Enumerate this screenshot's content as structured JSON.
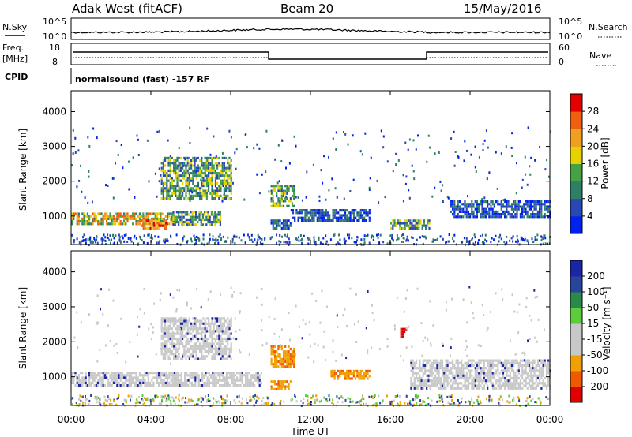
{
  "header": {
    "station": "Adak West (fitACF)",
    "beam": "Beam 20",
    "date": "15/May/2016",
    "cpid_text": "normalsound (fast) -157 RF"
  },
  "panels": {
    "nsky": {
      "label": "N.Sky",
      "left_ticks": [
        "10^5",
        "10^0"
      ],
      "right_ticks": [
        "10^5",
        "10^0"
      ],
      "right_label": "N.Search"
    },
    "freq": {
      "label_top": "Freq.",
      "label_unit": "[MHz]",
      "left_ticks": [
        "18",
        "8"
      ],
      "right_ticks": [
        "60",
        "0"
      ],
      "right_label": "Nave"
    },
    "cpid": {
      "label": "CPID"
    }
  },
  "colors": {
    "power": [
      "#0022ee",
      "#2a48b5",
      "#2f7f66",
      "#44a244",
      "#e6d200",
      "#f0a020",
      "#ee6010",
      "#e40000"
    ],
    "velocity": [
      "#e00000",
      "#ee5a00",
      "#f0a000",
      "#c8c8c8",
      "#c8c8c8",
      "#5ccc3c",
      "#2a8a4a",
      "#28449c",
      "#1a26a4"
    ]
  },
  "chart_data": [
    {
      "type": "heatmap",
      "name": "power",
      "ylabel": "Slant Range [km]",
      "yticks": [
        1000,
        2000,
        3000,
        4000
      ],
      "ylim": [
        180,
        4600
      ],
      "xlim_hours": [
        0,
        24
      ],
      "colorbar": {
        "label": "Power [dB]",
        "ticks": [
          "4",
          "8",
          "12",
          "16",
          "20",
          "24",
          "28"
        ],
        "range": [
          0,
          32
        ]
      },
      "echo_regions": [
        {
          "t": [
            0.0,
            5.2
          ],
          "r": [
            800,
            1100
          ],
          "level": "high"
        },
        {
          "t": [
            3.5,
            4.8
          ],
          "r": [
            650,
            900
          ],
          "level": "very high"
        },
        {
          "t": [
            5.0,
            7.5
          ],
          "r": [
            750,
            1150
          ],
          "level": "medium"
        },
        {
          "t": [
            4.5,
            8.0
          ],
          "r": [
            1500,
            2700
          ],
          "level": "medium"
        },
        {
          "t": [
            10.0,
            11.2
          ],
          "r": [
            1300,
            1900
          ],
          "level": "medium"
        },
        {
          "t": [
            10.0,
            11.0
          ],
          "r": [
            650,
            900
          ],
          "level": "low"
        },
        {
          "t": [
            11.0,
            15.0
          ],
          "r": [
            900,
            1200
          ],
          "level": "low"
        },
        {
          "t": [
            16.0,
            18.0
          ],
          "r": [
            650,
            900
          ],
          "level": "medium"
        },
        {
          "t": [
            19.0,
            24.0
          ],
          "r": [
            950,
            1450
          ],
          "level": "low"
        }
      ]
    },
    {
      "type": "heatmap",
      "name": "velocity",
      "ylabel": "Slant Range [km]",
      "yticks": [
        1000,
        2000,
        3000,
        4000
      ],
      "ylim": [
        180,
        4600
      ],
      "xlim_hours": [
        0,
        24
      ],
      "xticks": [
        "00:00",
        "04:00",
        "08:00",
        "12:00",
        "16:00",
        "20:00",
        "00:00"
      ],
      "xlabel": "Time UT",
      "colorbar": {
        "label": "Velocity [m s⁻¹]",
        "ticks": [
          "200",
          "100",
          "50",
          "15",
          "-15",
          "-50",
          "-100",
          "-200"
        ]
      },
      "echo_regions": [
        {
          "t": [
            0.0,
            9.5
          ],
          "r": [
            750,
            1150
          ],
          "v": "near zero"
        },
        {
          "t": [
            4.5,
            8.0
          ],
          "r": [
            1500,
            2700
          ],
          "v": "near zero"
        },
        {
          "t": [
            10.0,
            11.2
          ],
          "r": [
            1300,
            1900
          ],
          "v": "-50"
        },
        {
          "t": [
            10.0,
            11.0
          ],
          "r": [
            650,
            900
          ],
          "v": "-50"
        },
        {
          "t": [
            13.0,
            15.0
          ],
          "r": [
            950,
            1200
          ],
          "v": "-50"
        },
        {
          "t": [
            16.5,
            16.8
          ],
          "r": [
            2150,
            2400
          ],
          "v": "-200"
        },
        {
          "t": [
            17.0,
            24.0
          ],
          "r": [
            700,
            1500
          ],
          "v": "near zero"
        }
      ]
    }
  ]
}
